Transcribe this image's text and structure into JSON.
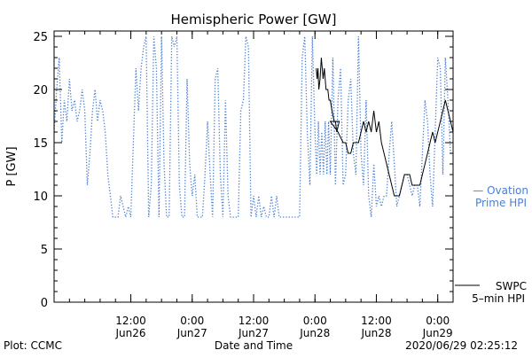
{
  "chart_data": {
    "type": "line",
    "title": "Hemispheric Power [GW]",
    "ylabel": "P [GW]",
    "xlabel": "Date and Time",
    "ylim": [
      0,
      25.5
    ],
    "yticks": [
      0,
      5,
      10,
      15,
      20,
      25
    ],
    "xlim": [
      "2020-06-25T21:00",
      "2020-06-29T03:00"
    ],
    "xticks": [
      {
        "t": "2020-06-26T12:00",
        "time": "12:00",
        "date": "Jun26"
      },
      {
        "t": "2020-06-27T00:00",
        "time": "0:00",
        "date": "Jun27"
      },
      {
        "t": "2020-06-27T12:00",
        "time": "12:00",
        "date": "Jun27"
      },
      {
        "t": "2020-06-28T00:00",
        "time": "0:00",
        "date": "Jun28"
      },
      {
        "t": "2020-06-28T12:00",
        "time": "12:00",
        "date": "Jun28"
      },
      {
        "t": "2020-06-29T00:00",
        "time": "0:00",
        "date": "Jun29"
      }
    ],
    "grid": false,
    "series": [
      {
        "name": "— Ovation Prime HPI",
        "color": "#4a7fd4",
        "style": "dotted",
        "points": [
          [
            "2020-06-25T21:00",
            16
          ],
          [
            "2020-06-25T21:30",
            20
          ],
          [
            "2020-06-25T22:00",
            23
          ],
          [
            "2020-06-25T22:30",
            15
          ],
          [
            "2020-06-25T23:00",
            19
          ],
          [
            "2020-06-25T23:30",
            17
          ],
          [
            "2020-06-26T00:00",
            21
          ],
          [
            "2020-06-26T00:30",
            18
          ],
          [
            "2020-06-26T01:00",
            19
          ],
          [
            "2020-06-26T01:30",
            17
          ],
          [
            "2020-06-26T02:00",
            18
          ],
          [
            "2020-06-26T02:30",
            20
          ],
          [
            "2020-06-26T03:00",
            18
          ],
          [
            "2020-06-26T03:30",
            11
          ],
          [
            "2020-06-26T04:00",
            14
          ],
          [
            "2020-06-26T04:30",
            18
          ],
          [
            "2020-06-26T05:00",
            20
          ],
          [
            "2020-06-26T05:30",
            17
          ],
          [
            "2020-06-26T06:00",
            19
          ],
          [
            "2020-06-26T06:30",
            18
          ],
          [
            "2020-06-26T07:00",
            16
          ],
          [
            "2020-06-26T07:30",
            12
          ],
          [
            "2020-06-26T08:00",
            10
          ],
          [
            "2020-06-26T08:30",
            8
          ],
          [
            "2020-06-26T09:00",
            8
          ],
          [
            "2020-06-26T09:30",
            8
          ],
          [
            "2020-06-26T10:00",
            10
          ],
          [
            "2020-06-26T10:30",
            9
          ],
          [
            "2020-06-26T11:00",
            8
          ],
          [
            "2020-06-26T11:30",
            9
          ],
          [
            "2020-06-26T12:00",
            8
          ],
          [
            "2020-06-26T13:00",
            22
          ],
          [
            "2020-06-26T13:30",
            18
          ],
          [
            "2020-06-26T14:00",
            22
          ],
          [
            "2020-06-26T14:30",
            24
          ],
          [
            "2020-06-26T15:00",
            25
          ],
          [
            "2020-06-26T15:30",
            8
          ],
          [
            "2020-06-26T16:00",
            11
          ],
          [
            "2020-06-26T16:30",
            25
          ],
          [
            "2020-06-26T17:00",
            22
          ],
          [
            "2020-06-26T17:30",
            8
          ],
          [
            "2020-06-26T18:00",
            25
          ],
          [
            "2020-06-26T18:30",
            13
          ],
          [
            "2020-06-26T19:00",
            8
          ],
          [
            "2020-06-26T19:30",
            8
          ],
          [
            "2020-06-26T20:00",
            25
          ],
          [
            "2020-06-26T20:30",
            24
          ],
          [
            "2020-06-26T21:00",
            25
          ],
          [
            "2020-06-26T21:30",
            11
          ],
          [
            "2020-06-26T22:00",
            8
          ],
          [
            "2020-06-26T22:30",
            8
          ],
          [
            "2020-06-26T23:00",
            21
          ],
          [
            "2020-06-26T23:30",
            13
          ],
          [
            "2020-06-27T00:00",
            10
          ],
          [
            "2020-06-27T00:30",
            12
          ],
          [
            "2020-06-27T01:00",
            8
          ],
          [
            "2020-06-27T01:30",
            8
          ],
          [
            "2020-06-27T02:00",
            8
          ],
          [
            "2020-06-27T02:30",
            12
          ],
          [
            "2020-06-27T03:00",
            17
          ],
          [
            "2020-06-27T03:30",
            12
          ],
          [
            "2020-06-27T04:00",
            8
          ],
          [
            "2020-06-27T04:30",
            21
          ],
          [
            "2020-06-27T05:00",
            22
          ],
          [
            "2020-06-27T05:30",
            12
          ],
          [
            "2020-06-27T06:00",
            8
          ],
          [
            "2020-06-27T06:30",
            19
          ],
          [
            "2020-06-27T07:00",
            10
          ],
          [
            "2020-06-27T07:30",
            8
          ],
          [
            "2020-06-27T08:00",
            8
          ],
          [
            "2020-06-27T08:30",
            8
          ],
          [
            "2020-06-27T09:00",
            8
          ],
          [
            "2020-06-27T09:30",
            18
          ],
          [
            "2020-06-27T10:00",
            19
          ],
          [
            "2020-06-27T10:30",
            25
          ],
          [
            "2020-06-27T11:00",
            24
          ],
          [
            "2020-06-27T11:30",
            8
          ],
          [
            "2020-06-27T12:00",
            10
          ],
          [
            "2020-06-27T12:30",
            8
          ],
          [
            "2020-06-27T13:00",
            10
          ],
          [
            "2020-06-27T13:30",
            8
          ],
          [
            "2020-06-27T14:00",
            9
          ],
          [
            "2020-06-27T14:30",
            8
          ],
          [
            "2020-06-27T15:00",
            8
          ],
          [
            "2020-06-27T15:30",
            10
          ],
          [
            "2020-06-27T16:00",
            8
          ],
          [
            "2020-06-27T16:30",
            10
          ],
          [
            "2020-06-27T17:00",
            8
          ],
          [
            "2020-06-27T17:30",
            8
          ],
          [
            "2020-06-27T18:00",
            8
          ],
          [
            "2020-06-27T18:30",
            8
          ],
          [
            "2020-06-27T19:00",
            8
          ],
          [
            "2020-06-27T19:30",
            8
          ],
          [
            "2020-06-27T20:00",
            8
          ],
          [
            "2020-06-27T20:30",
            8
          ],
          [
            "2020-06-27T21:00",
            8
          ],
          [
            "2020-06-27T21:30",
            23
          ],
          [
            "2020-06-27T22:00",
            25
          ],
          [
            "2020-06-27T22:30",
            16
          ],
          [
            "2020-06-27T23:00",
            11
          ],
          [
            "2020-06-27T23:30",
            25
          ],
          [
            "2020-06-28T00:00",
            16
          ],
          [
            "2020-06-28T00:20",
            12
          ],
          [
            "2020-06-28T00:40",
            17
          ],
          [
            "2020-06-28T01:00",
            12
          ],
          [
            "2020-06-28T01:20",
            16
          ],
          [
            "2020-06-28T01:40",
            12
          ],
          [
            "2020-06-28T02:00",
            17
          ],
          [
            "2020-06-28T02:20",
            12
          ],
          [
            "2020-06-28T02:40",
            17
          ],
          [
            "2020-06-28T03:00",
            12
          ],
          [
            "2020-06-28T03:30",
            23
          ],
          [
            "2020-06-28T04:00",
            11
          ],
          [
            "2020-06-28T04:30",
            19
          ],
          [
            "2020-06-28T05:00",
            22
          ],
          [
            "2020-06-28T05:30",
            11
          ],
          [
            "2020-06-28T06:00",
            12
          ],
          [
            "2020-06-28T06:30",
            19
          ],
          [
            "2020-06-28T07:00",
            21
          ],
          [
            "2020-06-28T07:30",
            14
          ],
          [
            "2020-06-28T08:00",
            12
          ],
          [
            "2020-06-28T08:30",
            25
          ],
          [
            "2020-06-28T09:00",
            14
          ],
          [
            "2020-06-28T09:30",
            11
          ],
          [
            "2020-06-28T10:00",
            19
          ],
          [
            "2020-06-28T10:30",
            10
          ],
          [
            "2020-06-28T11:00",
            8
          ],
          [
            "2020-06-28T11:30",
            13
          ],
          [
            "2020-06-28T12:00",
            9
          ],
          [
            "2020-06-28T12:30",
            10
          ],
          [
            "2020-06-28T13:00",
            9
          ],
          [
            "2020-06-28T13:30",
            10
          ],
          [
            "2020-06-28T14:00",
            10
          ],
          [
            "2020-06-28T14:30",
            14
          ],
          [
            "2020-06-28T15:00",
            17
          ],
          [
            "2020-06-28T15:30",
            13
          ],
          [
            "2020-06-28T16:00",
            9
          ],
          [
            "2020-06-28T16:30",
            10
          ],
          [
            "2020-06-28T17:00",
            11
          ],
          [
            "2020-06-28T17:30",
            12
          ],
          [
            "2020-06-28T18:00",
            12
          ],
          [
            "2020-06-28T18:30",
            11
          ],
          [
            "2020-06-28T19:00",
            10
          ],
          [
            "2020-06-28T19:30",
            11
          ],
          [
            "2020-06-28T20:00",
            11
          ],
          [
            "2020-06-28T20:30",
            9
          ],
          [
            "2020-06-28T21:00",
            14
          ],
          [
            "2020-06-28T21:30",
            19
          ],
          [
            "2020-06-28T22:00",
            17
          ],
          [
            "2020-06-28T22:30",
            12
          ],
          [
            "2020-06-28T23:00",
            9
          ],
          [
            "2020-06-28T23:30",
            16
          ],
          [
            "2020-06-29T00:00",
            23
          ],
          [
            "2020-06-29T00:30",
            22
          ],
          [
            "2020-06-29T01:00",
            12
          ],
          [
            "2020-06-29T01:30",
            23
          ],
          [
            "2020-06-29T02:00",
            19
          ],
          [
            "2020-06-29T02:30",
            14
          ]
        ]
      },
      {
        "name": "SWPC 5–min HPI",
        "color": "#000000",
        "style": "solid",
        "points": [
          [
            "2020-06-28T00:15",
            22
          ],
          [
            "2020-06-28T00:25",
            21
          ],
          [
            "2020-06-28T00:35",
            22
          ],
          [
            "2020-06-28T00:45",
            20
          ],
          [
            "2020-06-28T01:00",
            21
          ],
          [
            "2020-06-28T01:15",
            23
          ],
          [
            "2020-06-28T01:35",
            21
          ],
          [
            "2020-06-28T01:50",
            22
          ],
          [
            "2020-06-28T02:10",
            20
          ],
          [
            "2020-06-28T02:30",
            20
          ],
          [
            "2020-06-28T02:45",
            19
          ],
          [
            "2020-06-28T03:00",
            19
          ],
          [
            "2020-06-28T03:20",
            18
          ],
          [
            "2020-06-28T03:45",
            17
          ],
          [
            "2020-06-28T04:00",
            17
          ],
          [
            "2020-06-28T04:15",
            16
          ],
          [
            "2020-06-28T04:45",
            17
          ],
          [
            "2020-06-28T03:00",
            17
          ],
          [
            "2020-06-28T04:30",
            16
          ],
          [
            "2020-06-28T05:30",
            15
          ],
          [
            "2020-06-28T06:00",
            15
          ],
          [
            "2020-06-28T06:30",
            14
          ],
          [
            "2020-06-28T07:00",
            14
          ],
          [
            "2020-06-28T07:30",
            15
          ],
          [
            "2020-06-28T08:00",
            15
          ],
          [
            "2020-06-28T08:30",
            15
          ],
          [
            "2020-06-28T09:00",
            16
          ],
          [
            "2020-06-28T09:30",
            17
          ],
          [
            "2020-06-28T10:00",
            16
          ],
          [
            "2020-06-28T10:30",
            17
          ],
          [
            "2020-06-28T11:00",
            16
          ],
          [
            "2020-06-28T11:30",
            18
          ],
          [
            "2020-06-28T12:00",
            16
          ],
          [
            "2020-06-28T12:30",
            17
          ],
          [
            "2020-06-28T13:00",
            15
          ],
          [
            "2020-06-28T13:30",
            14
          ],
          [
            "2020-06-28T14:00",
            13
          ],
          [
            "2020-06-28T14:30",
            12
          ],
          [
            "2020-06-28T15:00",
            11
          ],
          [
            "2020-06-28T15:30",
            10
          ],
          [
            "2020-06-28T16:30",
            10
          ],
          [
            "2020-06-28T17:00",
            11
          ],
          [
            "2020-06-28T17:30",
            12
          ],
          [
            "2020-06-28T18:30",
            12
          ],
          [
            "2020-06-28T19:00",
            11
          ],
          [
            "2020-06-28T20:30",
            11
          ],
          [
            "2020-06-28T21:00",
            12
          ],
          [
            "2020-06-28T21:30",
            13
          ],
          [
            "2020-06-28T22:00",
            14
          ],
          [
            "2020-06-28T22:30",
            15
          ],
          [
            "2020-06-28T23:00",
            16
          ],
          [
            "2020-06-28T23:30",
            15
          ],
          [
            "2020-06-29T00:00",
            16
          ],
          [
            "2020-06-29T00:30",
            17
          ],
          [
            "2020-06-29T01:00",
            18
          ],
          [
            "2020-06-29T01:30",
            19
          ],
          [
            "2020-06-29T02:00",
            18
          ],
          [
            "2020-06-29T02:30",
            17
          ],
          [
            "2020-06-29T03:00",
            16
          ]
        ]
      }
    ],
    "legend": {
      "ovation_line1": "— Ovation",
      "ovation_line2": "Prime HPI",
      "swpc_line1": "SWPC",
      "swpc_line2": "5–min HPI"
    }
  },
  "footer": {
    "plot_credit": "Plot: CCMC",
    "timestamp": "2020/06/29 02:25:12"
  }
}
